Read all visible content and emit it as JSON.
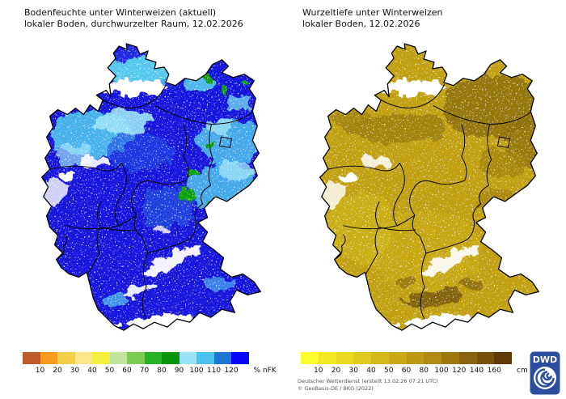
{
  "left_panel": {
    "title_line1": "Bodenfeuchte unter Winterweizen (aktuell)",
    "title_line2": "lokaler Boden, durchwurzelter Raum, 12.02.2026",
    "legend": {
      "unit": "% nFK",
      "ticks": [
        "10",
        "20",
        "30",
        "40",
        "50",
        "60",
        "70",
        "80",
        "90",
        "100",
        "110",
        "120"
      ],
      "colors": [
        "#bf5b28",
        "#f99b1c",
        "#f6cf4a",
        "#f8e88a",
        "#f4ef3f",
        "#c2e49a",
        "#7ccc52",
        "#27b327",
        "#089408",
        "#99e2f8",
        "#4cc2f1",
        "#1e78d2",
        "#0505fa"
      ]
    }
  },
  "right_panel": {
    "title_line1": "Wurzeltiefe unter Winterweizen",
    "title_line2": "lokaler Boden, 12.02.2026",
    "legend": {
      "unit": "cm",
      "ticks": [
        "10",
        "20",
        "30",
        "40",
        "50",
        "60",
        "80",
        "100",
        "120",
        "140",
        "160"
      ],
      "colors": [
        "#fbfb2e",
        "#f2e826",
        "#e9d921",
        "#dfca1d",
        "#d4b919",
        "#c9a917",
        "#bd9815",
        "#b08a13",
        "#9f7710",
        "#8a620d",
        "#77500a",
        "#5f3a07"
      ]
    }
  },
  "attribution": {
    "line1": "Deutscher Wetterdienst (erstellt 13.02.26 07:21 UTC)",
    "line2": "© GeoBasis-DE / BKG (2022)"
  },
  "logo": {
    "label": "DWD",
    "color": "#2b4f9e"
  },
  "map_colors": {
    "left_base": "#1717dd",
    "right_base": "#c1a012"
  }
}
